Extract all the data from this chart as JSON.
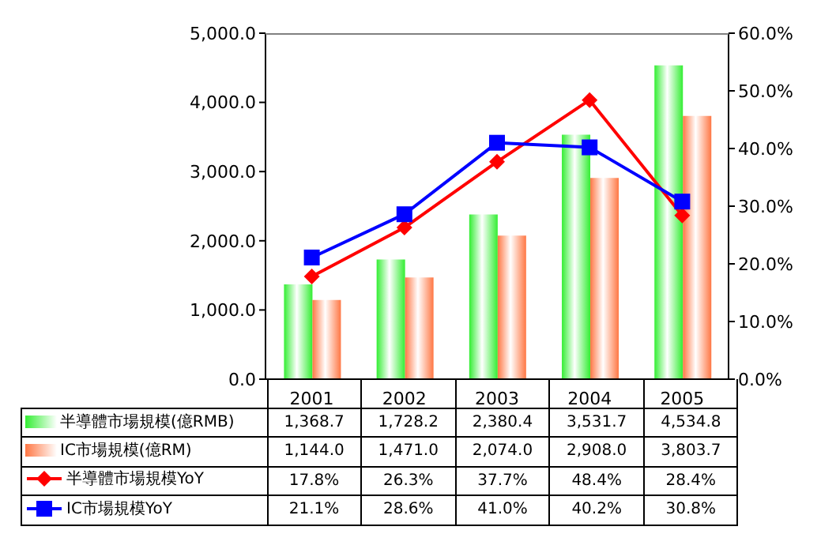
{
  "chart_data": {
    "type": "bar",
    "categories": [
      "2001",
      "2002",
      "2003",
      "2004",
      "2005"
    ],
    "series": [
      {
        "name": "半導體市場規模(億RMB)",
        "color": "#33ee33",
        "values": [
          1368.7,
          1728.2,
          2380.4,
          3531.7,
          4534.8
        ],
        "value_labels": [
          "1,368.7",
          "1,728.2",
          "2,380.4",
          "3,531.7",
          "4,534.8"
        ]
      },
      {
        "name": "IC市場規模(億RM)",
        "color": "#ff7744",
        "values": [
          1144.0,
          1471.0,
          2074.0,
          2908.0,
          3803.7
        ],
        "value_labels": [
          "1,144.0",
          "1,471.0",
          "2,074.0",
          "2,908.0",
          "3,803.7"
        ]
      },
      {
        "name": "半導體市場規模YoY",
        "type": "line",
        "axis": "y2",
        "color": "#ff0000",
        "marker": "diamond",
        "values": [
          17.8,
          26.3,
          37.7,
          48.4,
          28.4
        ],
        "value_labels": [
          "17.8%",
          "26.3%",
          "37.7%",
          "48.4%",
          "28.4%"
        ]
      },
      {
        "name": "IC市場規模YoY",
        "type": "line",
        "axis": "y2",
        "color": "#0000ff",
        "marker": "square",
        "values": [
          21.1,
          28.6,
          41.0,
          40.2,
          30.8
        ],
        "value_labels": [
          "21.1%",
          "28.6%",
          "41.0%",
          "40.2%",
          "30.8%"
        ]
      }
    ],
    "ylim": [
      0,
      5000
    ],
    "yticks": [
      {
        "value": 0,
        "label": "0.0"
      },
      {
        "value": 1000,
        "label": "1,000.0"
      },
      {
        "value": 2000,
        "label": "2,000.0"
      },
      {
        "value": 3000,
        "label": "3,000.0"
      },
      {
        "value": 4000,
        "label": "4,000.0"
      },
      {
        "value": 5000,
        "label": "5,000.0"
      }
    ],
    "y2lim": [
      0,
      60
    ],
    "y2ticks": [
      {
        "value": 0,
        "label": "0.0%"
      },
      {
        "value": 10,
        "label": "10.0%"
      },
      {
        "value": 20,
        "label": "20.0%"
      },
      {
        "value": 30,
        "label": "30.0%"
      },
      {
        "value": 40,
        "label": "40.0%"
      },
      {
        "value": 50,
        "label": "50.0%"
      },
      {
        "value": 60,
        "label": "60.0%"
      }
    ],
    "legend": "bottom"
  }
}
